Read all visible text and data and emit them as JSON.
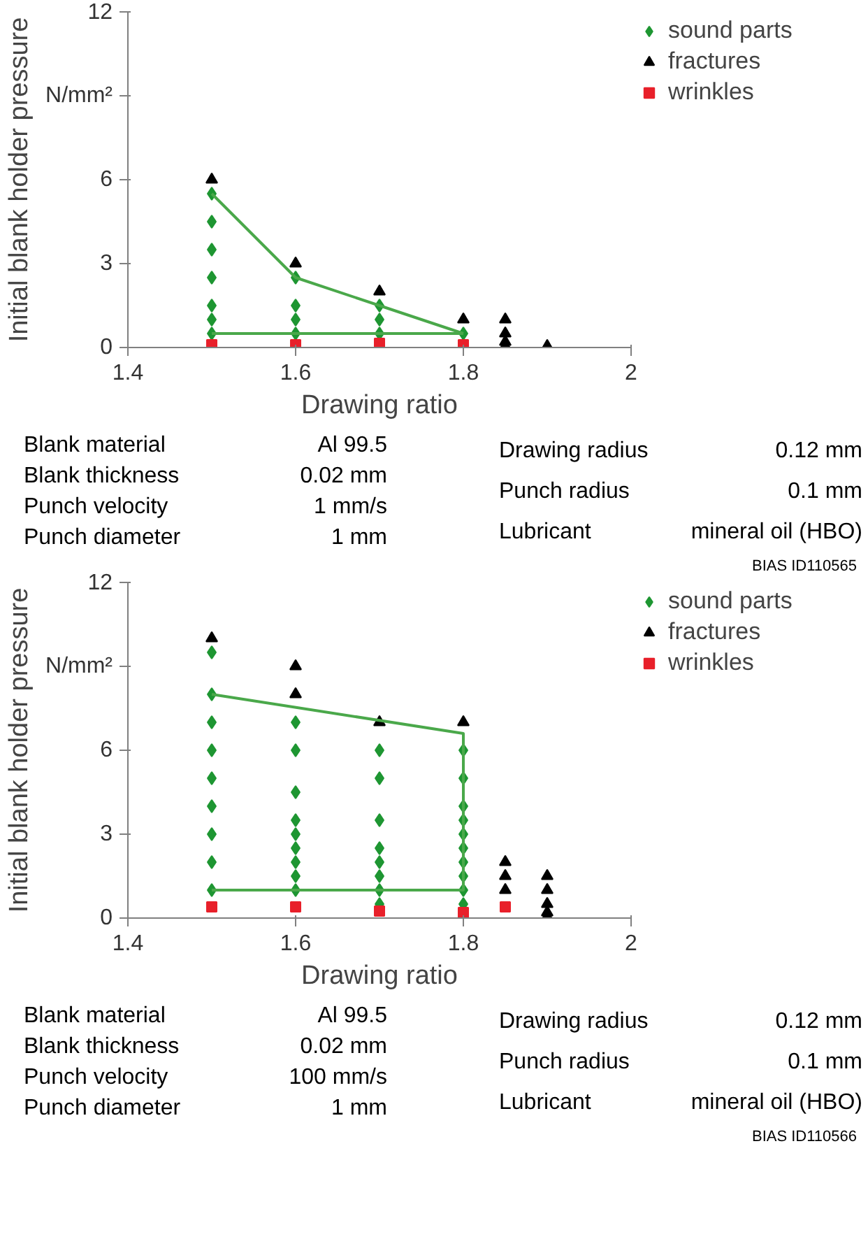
{
  "chart_data": [
    {
      "type": "scatter",
      "xlabel": "Drawing ratio",
      "ylabel": "Initial blank holder pressure",
      "xlim": [
        1.4,
        2
      ],
      "xticks": [
        1.4,
        1.6,
        1.8,
        2
      ],
      "ylim": [
        0,
        12
      ],
      "yticks": [
        0,
        3,
        6,
        {
          "value": 9,
          "label": "N/mm²"
        },
        12
      ],
      "legend": "right",
      "series": [
        {
          "name": "sound parts",
          "color": "#1e9632",
          "marker": "diamond",
          "x": [
            1.5,
            1.5,
            1.5,
            1.5,
            1.5,
            1.5,
            1.5,
            1.6,
            1.6,
            1.6,
            1.6,
            1.7,
            1.7,
            1.7,
            1.8
          ],
          "values": [
            5.5,
            4.5,
            3.5,
            2.5,
            1.5,
            1.0,
            0.5,
            2.5,
            1.5,
            1.0,
            0.5,
            1.5,
            1.0,
            0.5,
            0.5
          ]
        },
        {
          "name": "fractures",
          "color": "#000000",
          "marker": "triangle",
          "x": [
            1.5,
            1.6,
            1.7,
            1.8,
            1.85,
            1.85,
            1.85,
            1.85,
            1.9
          ],
          "values": [
            6,
            3,
            2,
            1,
            1,
            0.5,
            0.2,
            0.05,
            0.05
          ]
        },
        {
          "name": "wrinkles",
          "color": "#e8202a",
          "marker": "square",
          "x": [
            1.5,
            1.6,
            1.7,
            1.8
          ],
          "values": [
            0.1,
            0.1,
            0.15,
            0.1
          ]
        },
        {
          "type": "line",
          "color": "#4aa84a",
          "x": [
            1.5,
            1.6,
            1.7,
            1.8
          ],
          "values": [
            5.5,
            2.5,
            1.5,
            0.5
          ]
        },
        {
          "type": "line",
          "color": "#4aa84a",
          "x": [
            1.5,
            1.8
          ],
          "values": [
            0.5,
            0.5
          ]
        }
      ],
      "annotations": [
        "Blank material",
        "Al 99.5",
        "Blank thickness",
        "0.02 mm",
        "Punch velocity",
        "1 mm/s",
        "Punch diameter",
        "1 mm",
        "Drawing radius",
        "0.12 mm",
        "Punch radius",
        "0.1 mm",
        "Lubricant",
        "mineral oil (HBO)",
        "BIAS ID110565"
      ]
    },
    {
      "type": "scatter",
      "xlabel": "Drawing ratio",
      "ylabel": "Initial blank holder pressure",
      "xlim": [
        1.4,
        2
      ],
      "xticks": [
        1.4,
        1.6,
        1.8,
        2
      ],
      "ylim": [
        0,
        12
      ],
      "yticks": [
        0,
        3,
        6,
        {
          "value": 9,
          "label": "N/mm²"
        },
        12
      ],
      "legend": "right",
      "series": [
        {
          "name": "sound parts",
          "color": "#1e9632",
          "marker": "diamond",
          "x": [
            1.5,
            1.5,
            1.5,
            1.5,
            1.5,
            1.5,
            1.5,
            1.5,
            1.5,
            1.6,
            1.6,
            1.6,
            1.6,
            1.6,
            1.6,
            1.6,
            1.6,
            1.6,
            1.7,
            1.7,
            1.7,
            1.7,
            1.7,
            1.7,
            1.7,
            1.7,
            1.8,
            1.8,
            1.8,
            1.8,
            1.8,
            1.8,
            1.8,
            1.8,
            1.8,
            1.8
          ],
          "values": [
            9.5,
            8,
            7,
            6,
            5,
            4,
            3,
            2,
            1,
            7,
            6,
            4.5,
            3.5,
            3,
            2.5,
            2,
            1.5,
            1,
            6,
            5,
            3.5,
            2.5,
            2,
            1.5,
            1,
            0.5,
            6,
            5,
            4,
            3.5,
            3,
            2.5,
            2,
            1.5,
            1,
            0.5
          ]
        },
        {
          "name": "fractures",
          "color": "#000000",
          "marker": "triangle",
          "x": [
            1.5,
            1.6,
            1.6,
            1.7,
            1.8,
            1.85,
            1.85,
            1.85,
            1.9,
            1.9,
            1.9,
            1.9,
            1.9
          ],
          "values": [
            10,
            9,
            8,
            7,
            7,
            2,
            1.5,
            1,
            1.5,
            1,
            0.5,
            0.2,
            0.05
          ]
        },
        {
          "name": "wrinkles",
          "color": "#e8202a",
          "marker": "square",
          "x": [
            1.5,
            1.6,
            1.7,
            1.8,
            1.85
          ],
          "values": [
            0.4,
            0.4,
            0.25,
            0.2,
            0.4
          ]
        },
        {
          "type": "line",
          "color": "#4aa84a",
          "x": [
            1.5,
            1.8,
            1.8,
            1.5
          ],
          "values": [
            8,
            6.6,
            1,
            1
          ]
        }
      ],
      "annotations": [
        "Blank material",
        "Al 99.5",
        "Blank thickness",
        "0.02 mm",
        "Punch velocity",
        "100 mm/s",
        "Punch diameter",
        "1 mm",
        "Drawing radius",
        "0.12 mm",
        "Punch radius",
        "0.1 mm",
        "Lubricant",
        "mineral oil (HBO)",
        "BIAS ID110566"
      ]
    }
  ]
}
